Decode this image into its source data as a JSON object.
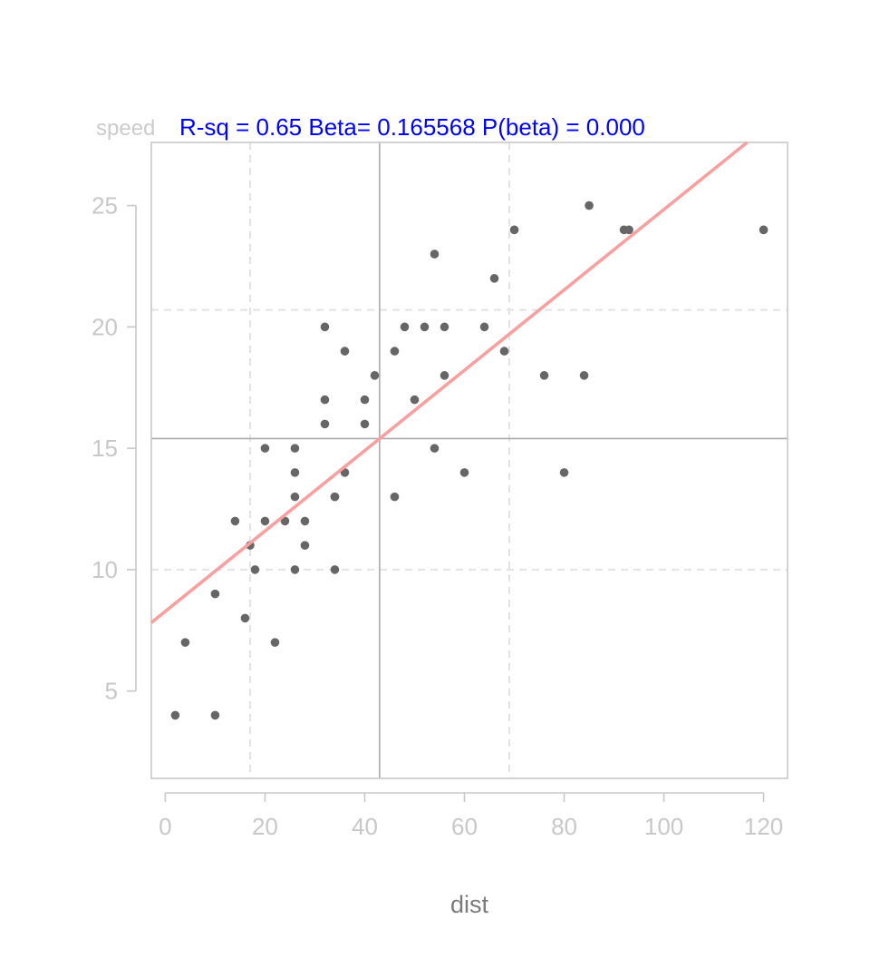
{
  "chart_data": {
    "type": "scatter",
    "title": "R-sq = 0.65  Beta= 0.165568 P(beta) = 0.000",
    "xlabel": "dist",
    "ylabel": "speed",
    "xlim": [
      -2.8,
      124.8
    ],
    "ylim": [
      1.4,
      27.6
    ],
    "xticks": [
      0,
      20,
      40,
      60,
      80,
      100,
      120
    ],
    "yticks": [
      5,
      10,
      15,
      20,
      25
    ],
    "mean_lines": {
      "x": 42.98,
      "y": 15.4
    },
    "quartile_lines": {
      "x": [
        17,
        69
      ],
      "y": [
        10,
        20.7
      ]
    },
    "regression": {
      "intercept": 8.28,
      "slope": 0.165568
    },
    "points": [
      [
        2,
        4
      ],
      [
        10,
        4
      ],
      [
        4,
        7
      ],
      [
        22,
        7
      ],
      [
        16,
        8
      ],
      [
        10,
        9
      ],
      [
        18,
        10
      ],
      [
        26,
        10
      ],
      [
        34,
        10
      ],
      [
        17,
        11
      ],
      [
        28,
        11
      ],
      [
        14,
        12
      ],
      [
        20,
        12
      ],
      [
        24,
        12
      ],
      [
        28,
        12
      ],
      [
        26,
        13
      ],
      [
        34,
        13
      ],
      [
        34,
        13
      ],
      [
        46,
        13
      ],
      [
        26,
        14
      ],
      [
        36,
        14
      ],
      [
        60,
        14
      ],
      [
        80,
        14
      ],
      [
        20,
        15
      ],
      [
        26,
        15
      ],
      [
        54,
        15
      ],
      [
        32,
        16
      ],
      [
        40,
        16
      ],
      [
        32,
        17
      ],
      [
        40,
        17
      ],
      [
        50,
        17
      ],
      [
        42,
        18
      ],
      [
        56,
        18
      ],
      [
        76,
        18
      ],
      [
        84,
        18
      ],
      [
        36,
        19
      ],
      [
        46,
        19
      ],
      [
        68,
        19
      ],
      [
        32,
        20
      ],
      [
        48,
        20
      ],
      [
        52,
        20
      ],
      [
        56,
        20
      ],
      [
        64,
        20
      ],
      [
        66,
        22
      ],
      [
        54,
        23
      ],
      [
        70,
        24
      ],
      [
        92,
        24
      ],
      [
        93,
        24
      ],
      [
        120,
        24
      ],
      [
        85,
        25
      ]
    ],
    "colors": {
      "points": "#666666",
      "regression": "#f8a0a0",
      "mean_lines": "#aaaaaa",
      "quartile_lines": "#e3e3e3",
      "frame": "#c8c8c8",
      "stats": "#0000ff"
    }
  }
}
